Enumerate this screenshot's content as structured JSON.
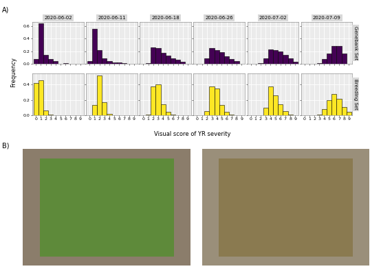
{
  "figure": {
    "panel_labels": [
      "A)",
      "B)"
    ],
    "xlabel": "Visual score of YR severity",
    "ylabel": "Frequency"
  },
  "chart_data": [
    {
      "type": "bar",
      "title": "2020-06-02",
      "x": [
        0,
        1,
        2,
        3,
        4,
        5,
        6,
        7,
        8,
        9
      ],
      "values": [
        0.07,
        0.64,
        0.14,
        0.08,
        0.04,
        0,
        0.01,
        0,
        0,
        0
      ],
      "color": "#440154",
      "xlim": [
        -0.7,
        9.7
      ],
      "xticks": [
        0,
        1,
        2,
        3,
        4,
        5,
        6,
        7,
        8,
        9
      ],
      "ylim": [
        0,
        0.67
      ],
      "yticks": [
        {
          "value": 0,
          "label": "0.0"
        },
        {
          "value": 0.2,
          "label": "0.2"
        },
        {
          "value": 0.4,
          "label": "0.4"
        },
        {
          "value": 0.6,
          "label": "0.6"
        }
      ],
      "grid": true,
      "tick_labels": "y"
    },
    {
      "type": "bar",
      "title": "2020-06-11",
      "x": [
        0,
        1,
        2,
        3,
        4,
        5,
        6,
        7,
        8,
        9
      ],
      "values": [
        0.04,
        0.56,
        0.22,
        0.09,
        0.04,
        0.02,
        0.02,
        0.01,
        0,
        0
      ],
      "color": "#440154",
      "xlim": [
        -0.7,
        9.7
      ],
      "xticks": [
        0,
        1,
        2,
        3,
        4,
        5,
        6,
        7,
        8,
        9
      ],
      "ylim": [
        0,
        0.67
      ],
      "yticks": [
        {
          "value": 0,
          "label": "0.0"
        },
        {
          "value": 0.2,
          "label": "0.2"
        },
        {
          "value": 0.4,
          "label": "0.4"
        },
        {
          "value": 0.6,
          "label": "0.6"
        }
      ],
      "grid": true,
      "tick_labels": false
    },
    {
      "type": "bar",
      "title": "2020-06-18",
      "x": [
        0,
        1,
        2,
        3,
        4,
        5,
        6,
        7,
        8,
        9
      ],
      "values": [
        0,
        0.01,
        0.26,
        0.25,
        0.17,
        0.13,
        0.09,
        0.06,
        0.03,
        0
      ],
      "color": "#440154",
      "xlim": [
        -0.7,
        9.7
      ],
      "xticks": [
        0,
        1,
        2,
        3,
        4,
        5,
        6,
        7,
        8,
        9
      ],
      "ylim": [
        0,
        0.67
      ],
      "yticks": [
        {
          "value": 0,
          "label": "0.0"
        },
        {
          "value": 0.2,
          "label": "0.2"
        },
        {
          "value": 0.4,
          "label": "0.4"
        },
        {
          "value": 0.6,
          "label": "0.6"
        }
      ],
      "grid": true,
      "tick_labels": false
    },
    {
      "type": "bar",
      "title": "2020-06-26",
      "x": [
        0,
        1,
        2,
        3,
        4,
        5,
        6,
        7,
        8,
        9
      ],
      "values": [
        0,
        0,
        0.09,
        0.25,
        0.22,
        0.18,
        0.12,
        0.08,
        0.04,
        0
      ],
      "color": "#440154",
      "xlim": [
        -0.7,
        9.7
      ],
      "xticks": [
        0,
        1,
        2,
        3,
        4,
        5,
        6,
        7,
        8,
        9
      ],
      "ylim": [
        0,
        0.67
      ],
      "yticks": [
        {
          "value": 0,
          "label": "0.0"
        },
        {
          "value": 0.2,
          "label": "0.2"
        },
        {
          "value": 0.4,
          "label": "0.4"
        },
        {
          "value": 0.6,
          "label": "0.6"
        }
      ],
      "grid": true,
      "tick_labels": false
    },
    {
      "type": "bar",
      "title": "2020-07-02",
      "x": [
        0,
        1,
        2,
        3,
        4,
        5,
        6,
        7,
        8,
        9
      ],
      "values": [
        0,
        0,
        0.01,
        0.09,
        0.23,
        0.22,
        0.19,
        0.14,
        0.09,
        0.03
      ],
      "color": "#440154",
      "xlim": [
        -0.7,
        9.7
      ],
      "xticks": [
        0,
        1,
        2,
        3,
        4,
        5,
        6,
        7,
        8,
        9
      ],
      "ylim": [
        0,
        0.67
      ],
      "yticks": [
        {
          "value": 0,
          "label": "0.0"
        },
        {
          "value": 0.2,
          "label": "0.2"
        },
        {
          "value": 0.4,
          "label": "0.4"
        },
        {
          "value": 0.6,
          "label": "0.6"
        }
      ],
      "grid": true,
      "tick_labels": false
    },
    {
      "type": "bar",
      "title": "2020-07-09",
      "annotations": [
        "Genebank Set"
      ],
      "x": [
        0,
        1,
        2,
        3,
        4,
        5,
        6,
        7,
        8,
        9
      ],
      "values": [
        0,
        0,
        0,
        0.01,
        0.07,
        0.16,
        0.28,
        0.28,
        0.16,
        0
      ],
      "color": "#440154",
      "xlim": [
        -0.7,
        9.7
      ],
      "xticks": [
        0,
        1,
        2,
        3,
        4,
        5,
        6,
        7,
        8,
        9
      ],
      "ylim": [
        0,
        0.67
      ],
      "yticks": [
        {
          "value": 0,
          "label": "0.0"
        },
        {
          "value": 0.2,
          "label": "0.2"
        },
        {
          "value": 0.4,
          "label": "0.4"
        },
        {
          "value": 0.6,
          "label": "0.6"
        }
      ],
      "grid": true,
      "tick_labels": false
    },
    {
      "type": "bar",
      "x": [
        0,
        1,
        2,
        3,
        4,
        5,
        6,
        7,
        8,
        9
      ],
      "values": [
        0.42,
        0.46,
        0.06,
        0.01,
        0,
        0,
        0,
        0,
        0,
        0
      ],
      "color": "#FDE725",
      "xlim": [
        -0.7,
        9.7
      ],
      "xticks": [
        0,
        1,
        2,
        3,
        4,
        5,
        6,
        7,
        8,
        9
      ],
      "ylim": [
        0,
        0.55
      ],
      "yticks": [
        {
          "value": 0,
          "label": "0.0"
        },
        {
          "value": 0.2,
          "label": "0.2"
        },
        {
          "value": 0.4,
          "label": "0.4"
        }
      ],
      "grid": true,
      "tick_labels": true
    },
    {
      "type": "bar",
      "x": [
        0,
        1,
        2,
        3,
        4,
        5,
        6,
        7,
        8,
        9
      ],
      "values": [
        0,
        0.13,
        0.52,
        0.17,
        0.02,
        0,
        0,
        0,
        0,
        0
      ],
      "color": "#FDE725",
      "xlim": [
        -0.7,
        9.7
      ],
      "xticks": [
        0,
        1,
        2,
        3,
        4,
        5,
        6,
        7,
        8,
        9
      ],
      "ylim": [
        0,
        0.55
      ],
      "yticks": [
        {
          "value": 0,
          "label": "0.0"
        },
        {
          "value": 0.2,
          "label": "0.2"
        },
        {
          "value": 0.4,
          "label": "0.4"
        }
      ],
      "grid": true,
      "tick_labels": "x"
    },
    {
      "type": "bar",
      "x": [
        0,
        1,
        2,
        3,
        4,
        5,
        6,
        7,
        8,
        9
      ],
      "values": [
        0,
        0.01,
        0.38,
        0.4,
        0.14,
        0.04,
        0.01,
        0,
        0,
        0
      ],
      "color": "#FDE725",
      "xlim": [
        -0.7,
        9.7
      ],
      "xticks": [
        0,
        1,
        2,
        3,
        4,
        5,
        6,
        7,
        8,
        9
      ],
      "ylim": [
        0,
        0.55
      ],
      "yticks": [
        {
          "value": 0,
          "label": "0.0"
        },
        {
          "value": 0.2,
          "label": "0.2"
        },
        {
          "value": 0.4,
          "label": "0.4"
        }
      ],
      "grid": true,
      "tick_labels": "x"
    },
    {
      "type": "bar",
      "x": [
        0,
        1,
        2,
        3,
        4,
        5,
        6,
        7,
        8,
        9
      ],
      "values": [
        0,
        0,
        0.05,
        0.38,
        0.35,
        0.13,
        0.04,
        0.01,
        0,
        0
      ],
      "color": "#FDE725",
      "xlim": [
        -0.7,
        9.7
      ],
      "xticks": [
        0,
        1,
        2,
        3,
        4,
        5,
        6,
        7,
        8,
        9
      ],
      "ylim": [
        0,
        0.55
      ],
      "yticks": [
        {
          "value": 0,
          "label": "0.0"
        },
        {
          "value": 0.2,
          "label": "0.2"
        },
        {
          "value": 0.4,
          "label": "0.4"
        }
      ],
      "grid": true,
      "tick_labels": "x"
    },
    {
      "type": "bar",
      "x": [
        0,
        1,
        2,
        3,
        4,
        5,
        6,
        7,
        8,
        9
      ],
      "values": [
        0,
        0,
        0,
        0.1,
        0.38,
        0.26,
        0.14,
        0.05,
        0.01,
        0
      ],
      "color": "#FDE725",
      "xlim": [
        -0.7,
        9.7
      ],
      "xticks": [
        0,
        1,
        2,
        3,
        4,
        5,
        6,
        7,
        8,
        9
      ],
      "ylim": [
        0,
        0.55
      ],
      "yticks": [
        {
          "value": 0,
          "label": "0.0"
        },
        {
          "value": 0.2,
          "label": "0.2"
        },
        {
          "value": 0.4,
          "label": "0.4"
        }
      ],
      "grid": true,
      "tick_labels": "x"
    },
    {
      "type": "bar",
      "annotations": [
        "Breeding Set"
      ],
      "x": [
        0,
        1,
        2,
        3,
        4,
        5,
        6,
        7,
        8,
        9
      ],
      "values": [
        0,
        0,
        0,
        0.01,
        0.08,
        0.2,
        0.28,
        0.21,
        0.11,
        0.04
      ],
      "color": "#FDE725",
      "xlim": [
        -0.7,
        9.7
      ],
      "xticks": [
        0,
        1,
        2,
        3,
        4,
        5,
        6,
        7,
        8,
        9
      ],
      "ylim": [
        0,
        0.55
      ],
      "yticks": [
        {
          "value": 0,
          "label": "0.0"
        },
        {
          "value": 0.2,
          "label": "0.2"
        },
        {
          "value": 0.4,
          "label": "0.4"
        }
      ],
      "grid": true,
      "tick_labels": "x"
    }
  ]
}
